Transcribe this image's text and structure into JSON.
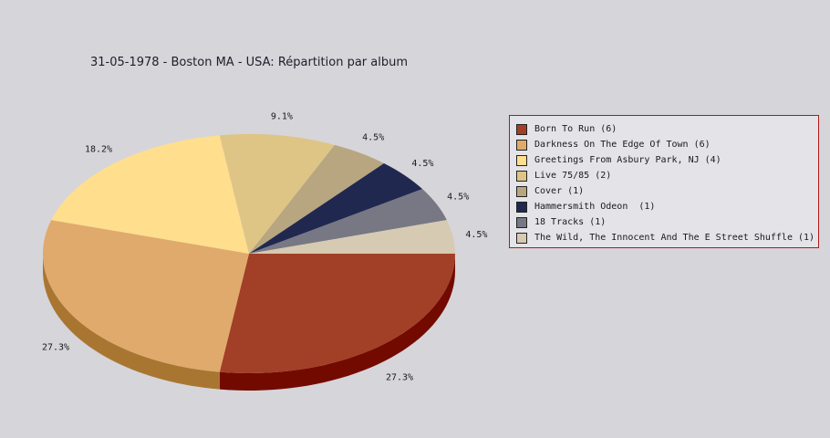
{
  "chart_data": {
    "type": "pie",
    "title": "31-05-1978 - Boston MA - USA:  Répartition par album",
    "series": [
      {
        "label": "Born To Run (6)",
        "value": 6,
        "percent_label": "27.3%",
        "color": "#a23f27",
        "side_color": "#730a00"
      },
      {
        "label": "Darkness On The Edge Of Town (6)",
        "value": 6,
        "percent_label": "27.3%",
        "color": "#e0aa6c",
        "side_color": "#a97632"
      },
      {
        "label": "Greetings From Asbury Park, NJ (4)",
        "value": 4,
        "percent_label": "18.2%",
        "color": "#ffde8e",
        "side_color": "#c9a85a"
      },
      {
        "label": "Live 75/85 (2)",
        "value": 2,
        "percent_label": "9.1%",
        "color": "#dec585",
        "side_color": "#a8904f"
      },
      {
        "label": "Cover (1)",
        "value": 1,
        "percent_label": "4.5%",
        "color": "#b7a680",
        "side_color": "#82744f"
      },
      {
        "label": "Hammersmith Odeon  (1)",
        "value": 1,
        "percent_label": "4.5%",
        "color": "#212850",
        "side_color": "#0c1028"
      },
      {
        "label": "18 Tracks (1)",
        "value": 1,
        "percent_label": "4.5%",
        "color": "#787884",
        "side_color": "#4a4a55"
      },
      {
        "label": "The Wild, The Innocent And The E Street Shuffle (1)",
        "value": 1,
        "percent_label": "4.5%",
        "color": "#d6cab2",
        "side_color": "#a0957d"
      }
    ],
    "legend_position": "right"
  },
  "legend_colors": {
    "border": "#b01818",
    "background": "#e4e3e8"
  }
}
